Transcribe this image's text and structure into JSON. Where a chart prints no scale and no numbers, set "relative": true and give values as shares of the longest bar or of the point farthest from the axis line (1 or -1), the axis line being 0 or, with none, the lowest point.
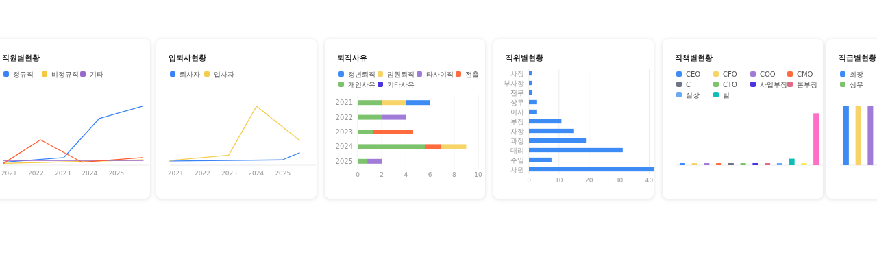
{
  "chart_data": [
    {
      "type": "line",
      "title": "직원별현황",
      "relative": true,
      "legend": "top left",
      "xlim": [
        2020.79,
        2026.23
      ],
      "xticks": [
        2021,
        2022,
        2023,
        2024,
        2025
      ],
      "series": [
        {
          "name": "정규직",
          "color": "#3b82f6",
          "x": [
            2020.79,
            2023.04,
            2024.36,
            2025.98
          ],
          "values": [
            0.05,
            0.13,
            0.79,
            1
          ]
        },
        {
          "name": "비정규직",
          "color": "#f5c842",
          "x": [
            2020.79,
            2026.0
          ],
          "values": [
            0.03,
            0.09
          ]
        },
        {
          "name": "기타",
          "color": "#9966cc",
          "x": [
            2020.79,
            2026.0
          ],
          "values": [
            0.08,
            0.08
          ]
        },
        {
          "color": "#ff5c33",
          "x": [
            2020.79,
            2022.17,
            2023.72,
            2025.98
          ],
          "values": [
            0.03,
            0.43,
            0.05,
            0.13
          ]
        }
      ]
    },
    {
      "type": "line",
      "title": "입퇴사현황",
      "relative": true,
      "legend": "top left",
      "xlim": [
        2020.79,
        2026.23
      ],
      "xticks": [
        2021,
        2022,
        2023,
        2024,
        2025
      ],
      "series": [
        {
          "name": "퇴사자",
          "color": "#3b82f6",
          "x": [
            2020.79,
            2024.98,
            2025.62
          ],
          "values": [
            0.07,
            0.09,
            0.21
          ]
        },
        {
          "name": "입사자",
          "color": "#f5cd4d",
          "x": [
            2020.79,
            2022.98,
            2024.02,
            2025.62
          ],
          "values": [
            0.08,
            0.17,
            1,
            0.42
          ]
        }
      ]
    },
    {
      "type": "bar",
      "title": "퇴직사유",
      "orientation": "horizontal",
      "stacked": true,
      "grid": "x",
      "legend": "top left",
      "xlim": [
        0,
        10
      ],
      "xticks": [
        0,
        2,
        4,
        6,
        8,
        10
      ],
      "categories": [
        "2021",
        "2022",
        "2023",
        "2024",
        "2025"
      ],
      "series": [
        {
          "name": "개인사유",
          "color": "#7dc36e",
          "values": [
            2,
            2,
            1.3,
            5.6,
            0.8
          ]
        },
        {
          "name": "전출",
          "color": "#ff6b3d",
          "values": [
            null,
            null,
            3.3,
            1.3,
            null
          ]
        },
        {
          "name": "타사이직",
          "color": "#a07bd8",
          "values": [
            null,
            2,
            null,
            null,
            1.2
          ]
        },
        {
          "name": "임원퇴직",
          "color": "#f7d468",
          "values": [
            2,
            null,
            null,
            2.1,
            null
          ]
        },
        {
          "name": "정년퇴직",
          "color": "#3d8bf5",
          "values": [
            2,
            null,
            null,
            null,
            null
          ]
        },
        {
          "name": "기타사유",
          "color": "#4a34e0",
          "values": [
            null,
            null,
            null,
            null,
            null
          ]
        }
      ]
    },
    {
      "type": "bar",
      "title": "직위별현황",
      "orientation": "horizontal",
      "grid": "x",
      "xlim": [
        0,
        41.5
      ],
      "xticks": [
        0,
        10,
        20,
        30,
        40
      ],
      "color": "#3d8bf5",
      "categories": [
        "사장",
        "부사장",
        "전무",
        "상무",
        "이사",
        "부장",
        "차장",
        "과장",
        "대리",
        "주임",
        "사원"
      ],
      "values": [
        1,
        1,
        1,
        2.7,
        2.7,
        10.8,
        15,
        19.2,
        31.2,
        7.5,
        41.5
      ]
    },
    {
      "type": "bar",
      "title": "직책별현황",
      "relative": true,
      "stacked": true,
      "legend": "top left",
      "categories": [
        null,
        null,
        null,
        null,
        null,
        null,
        null,
        null,
        null,
        null,
        null,
        null
      ],
      "series": [
        {
          "name": "CEO",
          "color": "#3d8bf5",
          "values": [
            0.04,
            null,
            null,
            null,
            null,
            null,
            null,
            null,
            null,
            null,
            null,
            null
          ]
        },
        {
          "name": "CFO",
          "color": "#f7d468",
          "values": [
            null,
            0.04,
            null,
            null,
            null,
            null,
            null,
            null,
            null,
            null,
            null,
            null
          ]
        },
        {
          "name": "COO",
          "color": "#a07bd8",
          "values": [
            null,
            null,
            0.04,
            null,
            null,
            null,
            null,
            null,
            null,
            null,
            null,
            null
          ]
        },
        {
          "name": "CMO",
          "color": "#ff6b3d",
          "values": [
            null,
            null,
            null,
            0.04,
            null,
            null,
            null,
            null,
            null,
            null,
            null,
            null
          ]
        },
        {
          "name": "C",
          "color": "#6e7386",
          "values": [
            null,
            null,
            null,
            null,
            0.04,
            null,
            null,
            null,
            null,
            null,
            null,
            null
          ]
        },
        {
          "name": "CTO",
          "color": "#7dc36e",
          "values": [
            null,
            null,
            null,
            null,
            null,
            0.04,
            null,
            null,
            null,
            null,
            null,
            null
          ]
        },
        {
          "name": "사업부장",
          "color": "#4a34e0",
          "values": [
            null,
            null,
            null,
            null,
            null,
            null,
            0.04,
            null,
            null,
            null,
            null,
            null
          ]
        },
        {
          "name": "본부장",
          "color": "#df6b87",
          "values": [
            null,
            null,
            null,
            null,
            null,
            null,
            null,
            0.04,
            null,
            null,
            null,
            null
          ]
        },
        {
          "name": "실장",
          "color": "#6aaaf0",
          "values": [
            null,
            null,
            null,
            null,
            null,
            null,
            null,
            null,
            0.04,
            null,
            null,
            null
          ]
        },
        {
          "name": "팀",
          "color": "#0bbfb8",
          "values": [
            null,
            null,
            null,
            null,
            null,
            null,
            null,
            null,
            null,
            0.125,
            null,
            null
          ]
        },
        {
          "color": "#f8ec44",
          "values": [
            null,
            null,
            null,
            null,
            null,
            null,
            null,
            null,
            null,
            null,
            0.04,
            null
          ]
        },
        {
          "color": "#ff6fc8",
          "values": [
            null,
            null,
            null,
            null,
            null,
            null,
            null,
            null,
            null,
            null,
            null,
            1
          ]
        }
      ]
    },
    {
      "type": "bar",
      "title": "직급별현황",
      "relative": true,
      "stacked": true,
      "legend": "top left",
      "categories": [
        null,
        null,
        null
      ],
      "series": [
        {
          "name": "회장",
          "color": "#3d8bf5",
          "values": [
            1,
            null,
            null
          ]
        },
        {
          "color": "#f7d468",
          "values": [
            null,
            1,
            null
          ]
        },
        {
          "color": "#a07bd8",
          "values": [
            null,
            null,
            1
          ]
        },
        {
          "name": "상무",
          "color": "#7dc36e",
          "values": [
            null,
            null,
            null
          ]
        }
      ]
    }
  ]
}
